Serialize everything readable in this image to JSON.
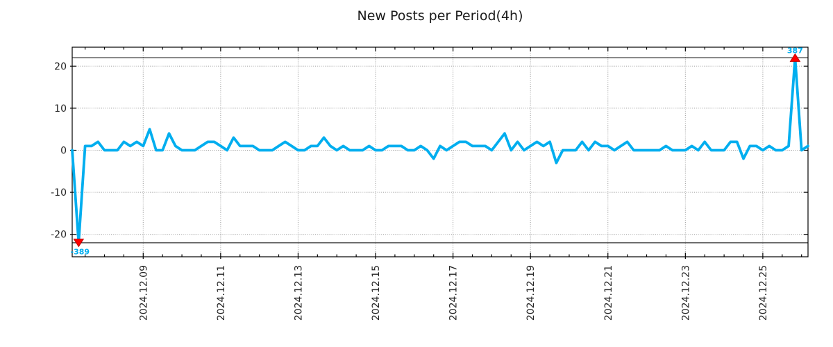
{
  "chart_data": {
    "type": "line",
    "title": "New Posts per Period(4h)",
    "interval_hours": 4,
    "x_tick_labels": [
      "2024.12.09",
      "2024.12.11",
      "2024.12.13",
      "2024.12.15",
      "2024.12.17",
      "2024.12.19",
      "2024.12.21",
      "2024.12.23",
      "2024.12.25"
    ],
    "x_major_tick_indices": [
      11,
      23,
      35,
      47,
      59,
      71,
      83,
      95,
      107
    ],
    "y_ticks": [
      20,
      10,
      0,
      -10,
      -20
    ],
    "ylim": [
      -25.3,
      24.5
    ],
    "clip_value": 22,
    "grid": true,
    "legend": false,
    "min": -389,
    "max": 387,
    "annotations": {
      "max_label": "387",
      "min_label": "-389"
    },
    "colors": {
      "line": "#00AEEF",
      "marker_fill": "#FF0000",
      "marker_edge": "#C00000",
      "annotation_text": "#00AEEF",
      "grid": "#9a9a9a",
      "axis": "#000000",
      "tick_text": "#262626",
      "background": "#FFFFFF"
    },
    "values": [
      0,
      -389,
      1,
      1,
      2,
      0,
      0,
      0,
      2,
      1,
      2,
      1,
      5,
      0,
      0,
      4,
      1,
      0,
      0,
      0,
      1,
      2,
      2,
      1,
      0,
      3,
      1,
      1,
      1,
      0,
      0,
      0,
      1,
      2,
      1,
      0,
      0,
      1,
      1,
      3,
      1,
      0,
      1,
      0,
      0,
      0,
      1,
      0,
      0,
      1,
      1,
      1,
      0,
      0,
      1,
      0,
      -2,
      1,
      0,
      1,
      2,
      2,
      1,
      1,
      1,
      0,
      2,
      4,
      0,
      2,
      0,
      1,
      2,
      1,
      2,
      -3,
      0,
      0,
      0,
      2,
      0,
      2,
      1,
      1,
      0,
      1,
      2,
      0,
      0,
      0,
      0,
      0,
      1,
      0,
      0,
      0,
      1,
      0,
      2,
      0,
      0,
      0,
      2,
      2,
      -2,
      1,
      1,
      0,
      1,
      0,
      0,
      1,
      387,
      0,
      1
    ]
  }
}
